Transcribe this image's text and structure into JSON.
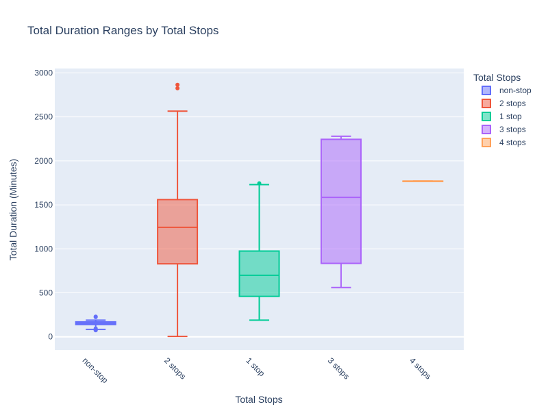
{
  "chart_data": {
    "type": "box",
    "title": "Total Duration Ranges by Total Stops",
    "xlabel": "Total Stops",
    "ylabel": "Total Duration (Minutes)",
    "ylim": [
      -150,
      3050
    ],
    "yticks": [
      0,
      500,
      1000,
      1500,
      2000,
      2500,
      3000
    ],
    "grid": true,
    "legend": {
      "title": "Total Stops",
      "placement": "right"
    },
    "categories": [
      "non-stop",
      "2 stops",
      "1 stop",
      "3 stops",
      "4 stops"
    ],
    "series": [
      {
        "name": "non-stop",
        "color": "#636efa",
        "min": 85,
        "q1": 140,
        "median": 155,
        "q3": 170,
        "max": 190,
        "outliers": [
          75,
          80,
          95,
          225,
          230
        ]
      },
      {
        "name": "2 stops",
        "color": "#ef553b",
        "min": 5,
        "q1": 830,
        "median": 1245,
        "q3": 1560,
        "max": 2565,
        "outliers": [
          2825,
          2865
        ]
      },
      {
        "name": "1 stop",
        "color": "#00cc96",
        "min": 190,
        "q1": 460,
        "median": 700,
        "q3": 975,
        "max": 1730,
        "outliers": [
          1745
        ]
      },
      {
        "name": "3 stops",
        "color": "#ab63fa",
        "min": 560,
        "q1": 835,
        "median": 1585,
        "q3": 2245,
        "max": 2280,
        "outliers": []
      },
      {
        "name": "4 stops",
        "color": "#ffa15a",
        "min": 1770,
        "q1": 1770,
        "median": 1770,
        "q3": 1770,
        "max": 1770,
        "outliers": []
      }
    ]
  }
}
